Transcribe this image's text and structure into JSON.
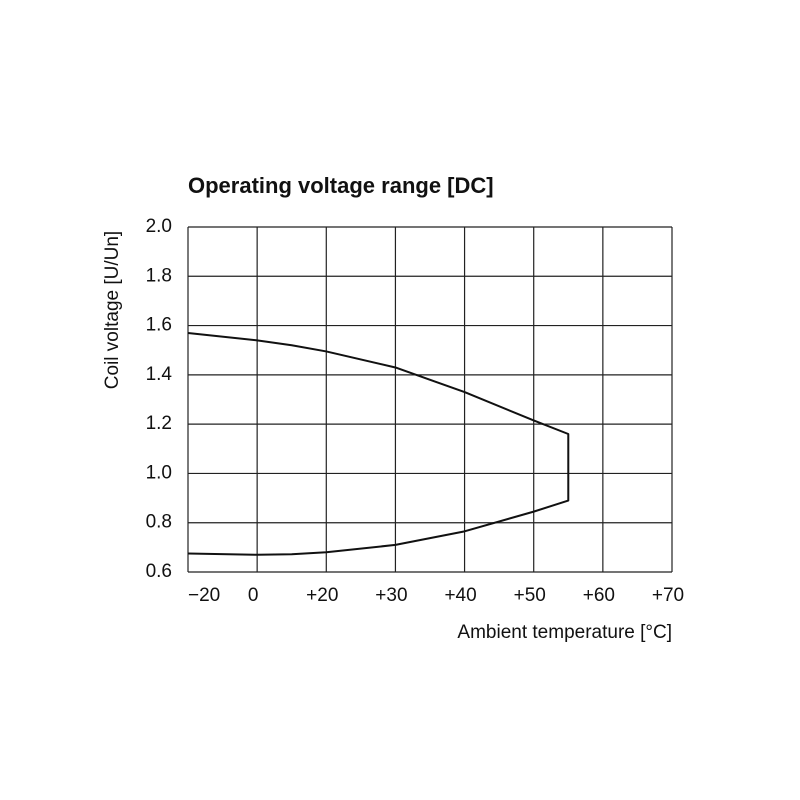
{
  "chart_data": {
    "type": "line",
    "title": "Operating voltage range [DC]",
    "x_label": "Ambient temperature [°C]",
    "y_label": "Coil voltage [U/Un]",
    "xlim": [
      -20,
      70
    ],
    "xticks": [
      {
        "value": -20,
        "label": "−20"
      },
      0,
      {
        "value": 20,
        "label": "+20"
      },
      {
        "value": 30,
        "label": "+30"
      },
      {
        "value": 40,
        "label": "+40"
      },
      {
        "value": 50,
        "label": "+50"
      },
      {
        "value": 60,
        "label": "+60"
      },
      {
        "value": 70,
        "label": "+70"
      }
    ],
    "ylim": [
      0.6,
      2.0
    ],
    "yticks": [
      {
        "value": 2,
        "label": "2.0"
      },
      1.8,
      1.6,
      1.4,
      1.2,
      {
        "value": 1,
        "label": "1.0"
      },
      0.8,
      0.6
    ],
    "grid": true,
    "series": [
      {
        "color": "#111111",
        "x": [
          -20,
          0,
          10,
          20,
          30,
          40,
          50,
          55,
          55,
          50,
          40,
          30,
          20,
          10,
          0,
          -20
        ],
        "values": [
          1.57,
          1.54,
          1.52,
          1.495,
          1.43,
          1.33,
          1.215,
          1.16,
          0.89,
          0.845,
          0.765,
          0.71,
          0.68,
          0.672,
          0.67,
          0.675
        ]
      }
    ]
  }
}
